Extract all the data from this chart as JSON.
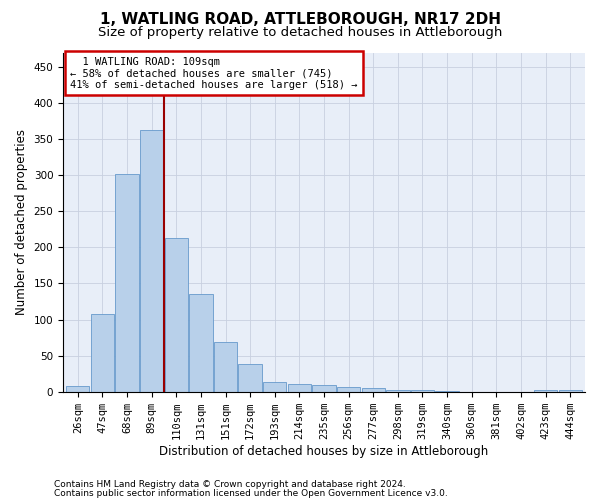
{
  "title1": "1, WATLING ROAD, ATTLEBOROUGH, NR17 2DH",
  "title2": "Size of property relative to detached houses in Attleborough",
  "xlabel": "Distribution of detached houses by size in Attleborough",
  "ylabel": "Number of detached properties",
  "footer1": "Contains HM Land Registry data © Crown copyright and database right 2024.",
  "footer2": "Contains public sector information licensed under the Open Government Licence v3.0.",
  "annotation_line1": "  1 WATLING ROAD: 109sqm",
  "annotation_line2": "← 58% of detached houses are smaller (745)",
  "annotation_line3": "41% of semi-detached houses are larger (518) →",
  "categories": [
    "26sqm",
    "47sqm",
    "68sqm",
    "89sqm",
    "110sqm",
    "131sqm",
    "151sqm",
    "172sqm",
    "193sqm",
    "214sqm",
    "235sqm",
    "256sqm",
    "277sqm",
    "298sqm",
    "319sqm",
    "340sqm",
    "360sqm",
    "381sqm",
    "402sqm",
    "423sqm",
    "444sqm"
  ],
  "values": [
    8,
    108,
    301,
    362,
    213,
    136,
    69,
    38,
    14,
    11,
    10,
    7,
    5,
    3,
    3,
    1,
    0,
    0,
    0,
    2,
    2
  ],
  "bar_color": "#b8d0ea",
  "bar_edge_color": "#6699cc",
  "highlight_line_color": "#990000",
  "grid_color": "#c8d0e0",
  "background_color": "#e8eef8",
  "annotation_box_facecolor": "#ffffff",
  "annotation_border_color": "#cc0000",
  "ylim": [
    0,
    470
  ],
  "title1_fontsize": 11,
  "title2_fontsize": 9.5,
  "axis_tick_fontsize": 7.5,
  "ylabel_fontsize": 8.5,
  "xlabel_fontsize": 8.5,
  "footer_fontsize": 6.5,
  "annotation_fontsize": 7.5
}
